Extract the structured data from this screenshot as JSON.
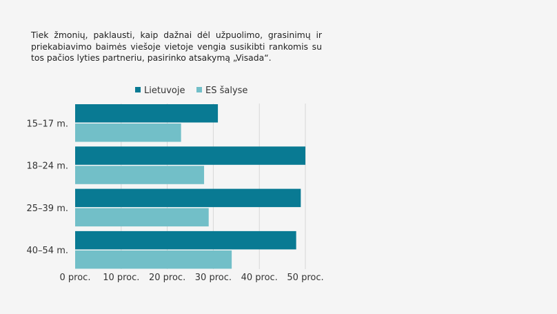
{
  "caption": "Tiek žmonių, paklausti, kaip dažnai dėl užpuolimo, grasinimų ir priekabiavimo baimės viešoje vietoje vengia susikibti rankomis su tos pačios lyties partneriu, pasirinko atsakymą „Visada“.",
  "chart_data": {
    "type": "bar",
    "orientation": "horizontal",
    "categories": [
      "15–17 m.",
      "18–24 m.",
      "25–39 m.",
      "40–54 m."
    ],
    "series": [
      {
        "name": "Lietuvoje",
        "color": "#097a93",
        "values": [
          31,
          50,
          49,
          48
        ]
      },
      {
        "name": "ES šalyse",
        "color": "#72bfc8",
        "values": [
          23,
          28,
          29,
          34
        ]
      }
    ],
    "xlim": [
      0,
      50
    ],
    "x_ticks": [
      0,
      10,
      20,
      30,
      40,
      50
    ],
    "x_tick_labels": [
      "0 proc.",
      "10 proc.",
      "20 proc.",
      "30 proc.",
      "40 proc.",
      "50 proc."
    ],
    "grid": "vertical",
    "legend": "top",
    "gridline_color": "#d7d7d7"
  }
}
